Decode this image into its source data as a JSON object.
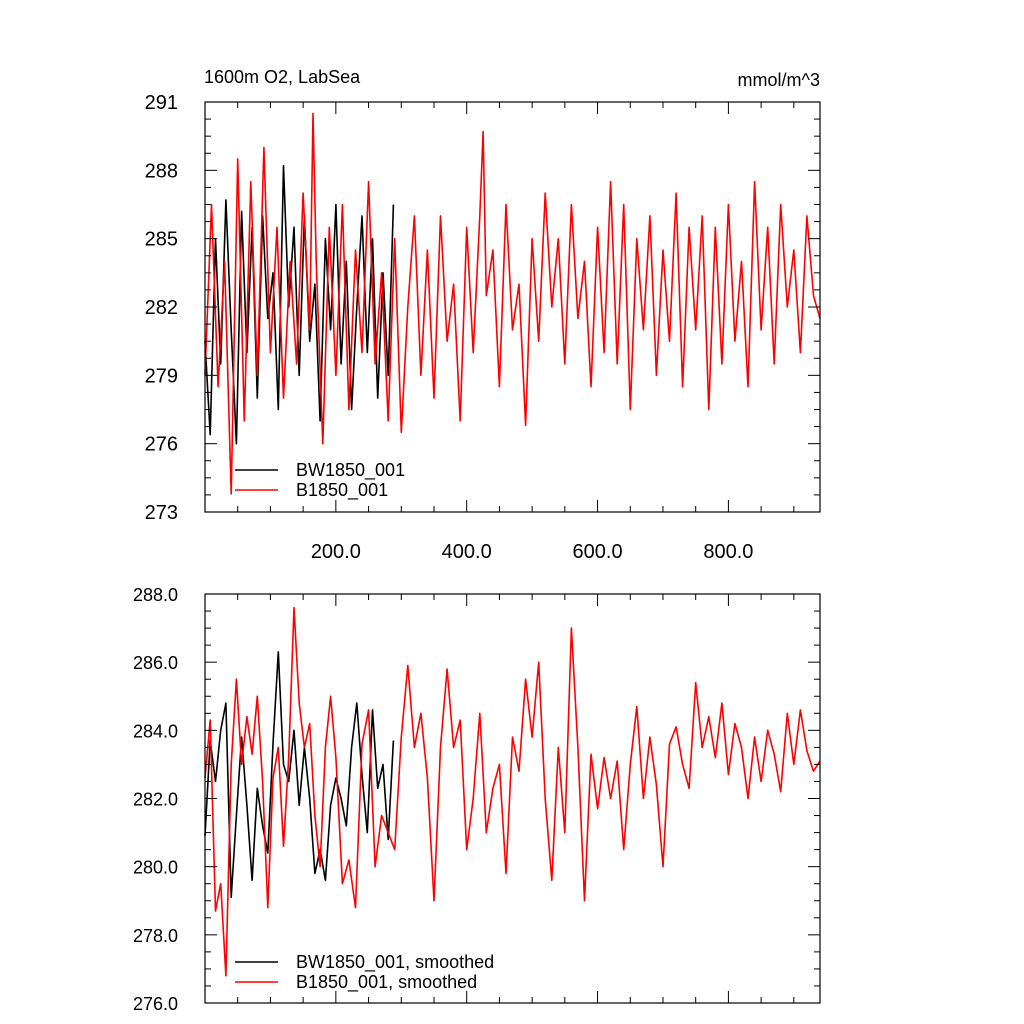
{
  "chart_data": [
    {
      "type": "line",
      "title": "1600m O2, LabSea",
      "units": "mmol/m^3",
      "xlim": [
        0,
        940
      ],
      "ylim": [
        273,
        291
      ],
      "xticks": [
        200,
        400,
        600,
        800
      ],
      "xtick_labels": [
        "200.0",
        "400.0",
        "600.0",
        "800.0"
      ],
      "yticks": [
        273,
        276,
        279,
        282,
        285,
        288,
        291
      ],
      "ytick_labels": [
        "273",
        "276",
        "279",
        "282",
        "285",
        "288",
        "291"
      ],
      "legend": [
        "BW1850_001",
        "B1850_001"
      ],
      "legend_placement": "bottom-left",
      "series": [
        {
          "name": "BW1850_001",
          "color": "#000000",
          "x": [
            0,
            8,
            16,
            24,
            32,
            40,
            48,
            56,
            64,
            72,
            80,
            88,
            96,
            104,
            112,
            120,
            128,
            136,
            144,
            152,
            160,
            168,
            176,
            184,
            192,
            200,
            208,
            216,
            224,
            232,
            240,
            248,
            256,
            264,
            272,
            280,
            288
          ],
          "values": [
            280.5,
            276.4,
            285.0,
            279.5,
            286.7,
            281.0,
            276.0,
            286.2,
            280.0,
            285.5,
            278.0,
            286.0,
            281.5,
            283.5,
            277.5,
            288.2,
            282.0,
            285.5,
            279.0,
            286.0,
            280.5,
            283.0,
            277.0,
            285.0,
            281.0,
            286.5,
            279.5,
            284.0,
            277.5,
            282.0,
            286.0,
            280.0,
            285.0,
            278.0,
            283.5,
            279.0,
            286.5
          ]
        },
        {
          "name": "B1850_001",
          "color": "#ff0000",
          "x": [
            0,
            10,
            20,
            30,
            40,
            50,
            60,
            70,
            80,
            90,
            100,
            110,
            120,
            130,
            140,
            150,
            160,
            165,
            170,
            180,
            190,
            200,
            210,
            220,
            230,
            240,
            250,
            260,
            270,
            280,
            290,
            300,
            310,
            320,
            330,
            340,
            350,
            360,
            370,
            380,
            390,
            400,
            410,
            420,
            425,
            430,
            440,
            450,
            460,
            470,
            480,
            490,
            500,
            510,
            520,
            530,
            540,
            550,
            560,
            570,
            580,
            590,
            600,
            610,
            620,
            630,
            640,
            650,
            660,
            670,
            680,
            690,
            700,
            710,
            720,
            730,
            740,
            750,
            760,
            770,
            780,
            790,
            800,
            810,
            820,
            830,
            840,
            850,
            860,
            870,
            880,
            890,
            900,
            910,
            920,
            930,
            940
          ],
          "values": [
            279.0,
            286.5,
            278.5,
            284.0,
            273.8,
            288.5,
            277.0,
            287.5,
            279.0,
            289.0,
            280.0,
            285.5,
            278.0,
            284.0,
            279.5,
            287.0,
            281.0,
            290.5,
            284.0,
            276.0,
            285.5,
            279.0,
            286.5,
            277.5,
            284.5,
            280.0,
            287.5,
            279.5,
            283.5,
            277.0,
            285.0,
            276.5,
            282.0,
            286.0,
            279.0,
            284.5,
            278.0,
            286.0,
            280.5,
            283.0,
            277.0,
            285.5,
            280.0,
            286.0,
            289.7,
            282.5,
            284.5,
            278.5,
            286.5,
            281.0,
            283.0,
            276.8,
            285.0,
            280.5,
            287.0,
            282.0,
            285.0,
            279.5,
            286.5,
            281.5,
            284.0,
            278.5,
            285.5,
            280.0,
            287.5,
            279.5,
            286.5,
            277.5,
            285.0,
            281.0,
            286.0,
            279.0,
            284.5,
            280.5,
            287.0,
            278.5,
            285.5,
            281.0,
            286.0,
            277.5,
            285.5,
            279.5,
            286.5,
            280.5,
            284.0,
            278.5,
            287.5,
            281.0,
            285.5,
            279.5,
            286.5,
            282.0,
            284.5,
            280.0,
            286.0,
            282.5,
            281.5
          ]
        }
      ]
    },
    {
      "type": "line",
      "xlim": [
        0,
        940
      ],
      "ylim": [
        276,
        288
      ],
      "xticks": [
        200,
        400,
        600,
        800
      ],
      "yticks": [
        276,
        278,
        280,
        282,
        284,
        286,
        288
      ],
      "ytick_labels": [
        "276.0",
        "278.0",
        "280.0",
        "282.0",
        "284.0",
        "286.0",
        "288.0"
      ],
      "legend": [
        "BW1850_001, smoothed",
        "B1850_001, smoothed"
      ],
      "legend_placement": "bottom-left",
      "series": [
        {
          "name": "BW1850_001, smoothed",
          "color": "#000000",
          "x": [
            0,
            8,
            16,
            24,
            32,
            40,
            48,
            56,
            64,
            72,
            80,
            88,
            96,
            104,
            112,
            120,
            128,
            136,
            144,
            152,
            160,
            168,
            176,
            184,
            192,
            200,
            208,
            216,
            224,
            232,
            240,
            248,
            256,
            264,
            272,
            280,
            288
          ],
          "values": [
            280.9,
            283.7,
            282.5,
            284.0,
            284.8,
            279.1,
            281.5,
            283.8,
            281.8,
            279.6,
            282.3,
            281.2,
            280.4,
            283.6,
            286.3,
            283.0,
            282.5,
            284.0,
            281.8,
            283.5,
            282.0,
            279.8,
            280.5,
            279.6,
            281.8,
            282.6,
            282.0,
            281.2,
            283.5,
            284.8,
            282.7,
            281.0,
            284.6,
            282.3,
            283.0,
            280.8,
            283.7
          ]
        },
        {
          "name": "B1850_001, smoothed",
          "color": "#ff0000",
          "x": [
            0,
            8,
            16,
            24,
            32,
            40,
            48,
            56,
            64,
            72,
            80,
            88,
            96,
            104,
            112,
            120,
            128,
            136,
            144,
            152,
            160,
            168,
            176,
            184,
            192,
            200,
            210,
            220,
            230,
            240,
            250,
            260,
            270,
            280,
            290,
            300,
            310,
            320,
            330,
            340,
            350,
            360,
            370,
            380,
            390,
            400,
            410,
            420,
            430,
            440,
            450,
            460,
            470,
            480,
            490,
            500,
            510,
            520,
            530,
            540,
            550,
            560,
            570,
            580,
            590,
            600,
            610,
            620,
            630,
            640,
            650,
            660,
            670,
            680,
            690,
            700,
            710,
            720,
            730,
            740,
            750,
            760,
            770,
            780,
            790,
            800,
            810,
            820,
            830,
            840,
            850,
            860,
            870,
            880,
            890,
            900,
            910,
            920,
            930,
            940
          ],
          "values": [
            282.6,
            284.3,
            278.7,
            279.5,
            276.8,
            283.0,
            285.5,
            283.0,
            284.4,
            283.3,
            285.0,
            282.5,
            278.8,
            282.6,
            283.5,
            280.6,
            283.2,
            287.6,
            284.8,
            283.5,
            284.2,
            281.5,
            280.0,
            283.5,
            285.0,
            283.2,
            279.5,
            280.2,
            278.8,
            283.6,
            284.6,
            280.0,
            281.5,
            281.0,
            280.5,
            283.8,
            285.9,
            283.5,
            284.5,
            282.6,
            279.0,
            283.5,
            285.8,
            283.5,
            284.3,
            280.5,
            282.0,
            284.5,
            281.0,
            282.3,
            283.0,
            279.8,
            283.8,
            282.8,
            285.5,
            283.8,
            286.0,
            282.0,
            279.6,
            283.5,
            281.0,
            287.0,
            283.5,
            279.0,
            283.3,
            281.7,
            283.2,
            282.0,
            283.1,
            280.5,
            283.0,
            284.7,
            282.0,
            283.8,
            282.4,
            280.0,
            283.6,
            284.1,
            283.0,
            282.3,
            285.4,
            283.5,
            284.4,
            283.2,
            284.8,
            282.7,
            284.2,
            283.5,
            282.0,
            283.8,
            282.5,
            284.0,
            283.3,
            282.2,
            284.5,
            283.0,
            284.6,
            283.4,
            282.8,
            283.1
          ]
        }
      ]
    }
  ]
}
